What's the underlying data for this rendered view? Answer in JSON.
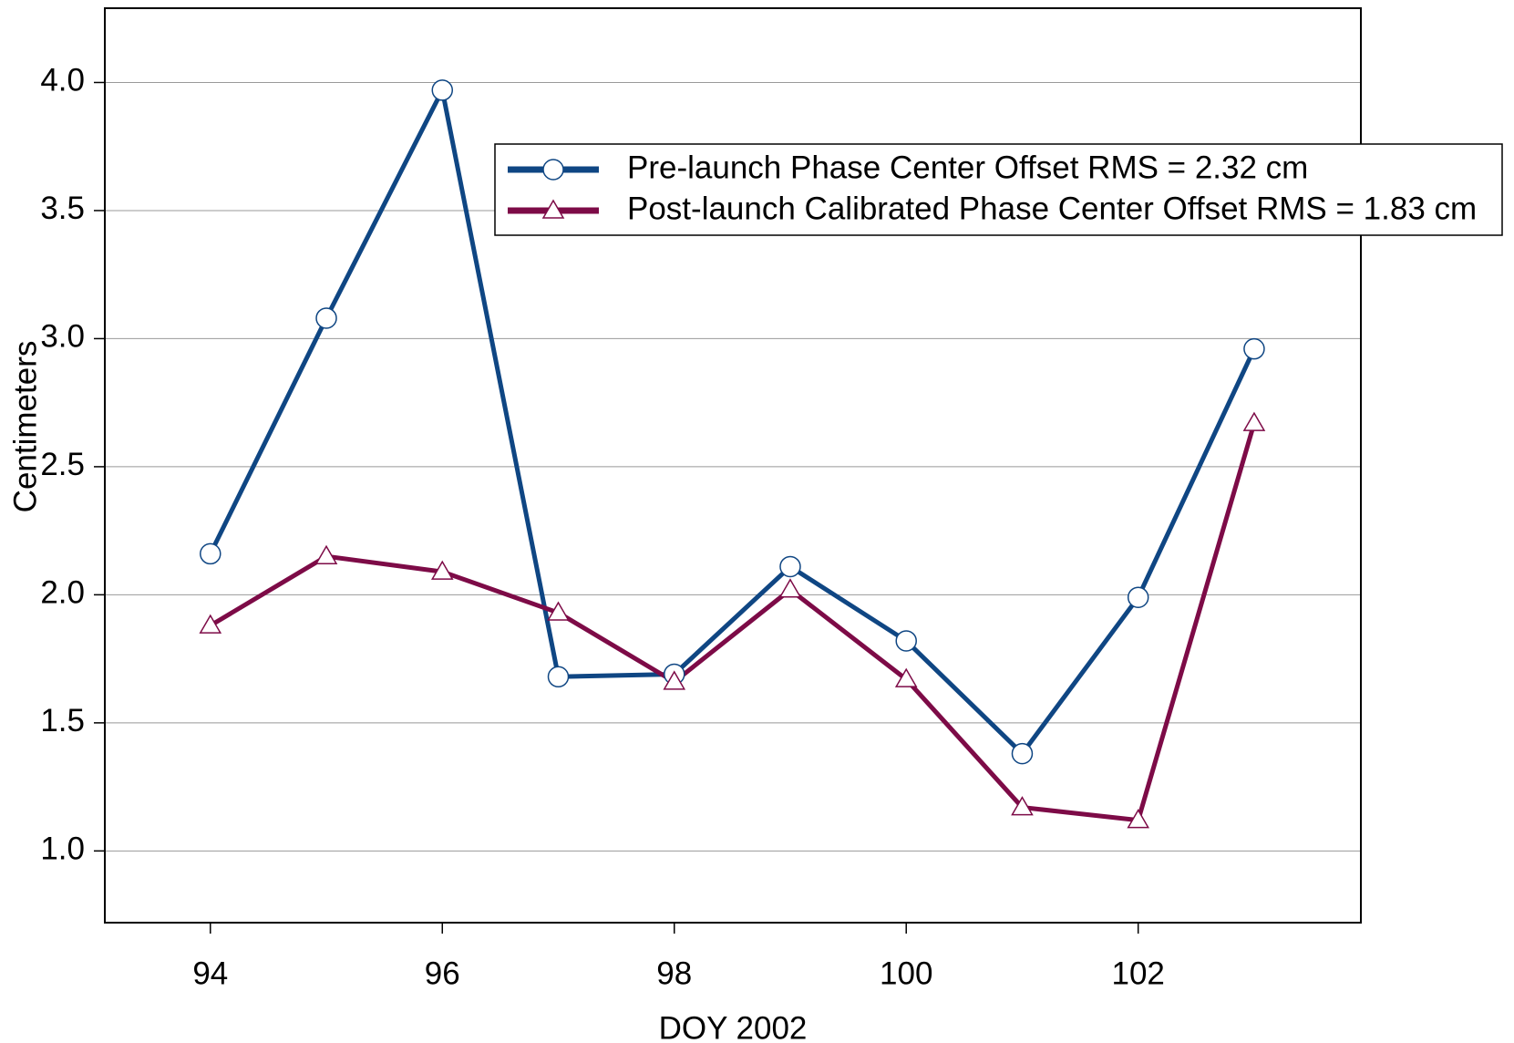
{
  "chart_data": {
    "type": "line",
    "x_label": "DOY 2002",
    "y_label": "Centimeters",
    "x": [
      94,
      95,
      96,
      97,
      98,
      99,
      100,
      101,
      102,
      103
    ],
    "series": [
      {
        "name": "Pre-launch Phase Center Offset  RMS = 2.32 cm",
        "color": "#0f4683",
        "marker": "circle",
        "values": [
          2.16,
          3.08,
          3.97,
          1.68,
          1.69,
          2.11,
          1.82,
          1.38,
          1.99,
          2.96
        ]
      },
      {
        "name": "Post-launch Calibrated Phase Center Offset  RMS = 1.83 cm",
        "color": "#7d0b47",
        "marker": "triangle",
        "values": [
          1.88,
          2.15,
          2.09,
          1.93,
          1.66,
          2.02,
          1.67,
          1.17,
          1.12,
          2.67
        ]
      }
    ],
    "xlim": [
      93.09,
      103.92
    ],
    "ylim": [
      0.72,
      4.29
    ],
    "xticks": [
      94,
      96,
      98,
      100,
      102
    ],
    "yticks": [
      {
        "value": 1,
        "label": "1.0"
      },
      1.5,
      {
        "value": 2,
        "label": "2.0"
      },
      2.5,
      {
        "value": 3,
        "label": "3.0"
      },
      3.5,
      {
        "value": 4,
        "label": "4.0"
      }
    ],
    "grid": true
  }
}
